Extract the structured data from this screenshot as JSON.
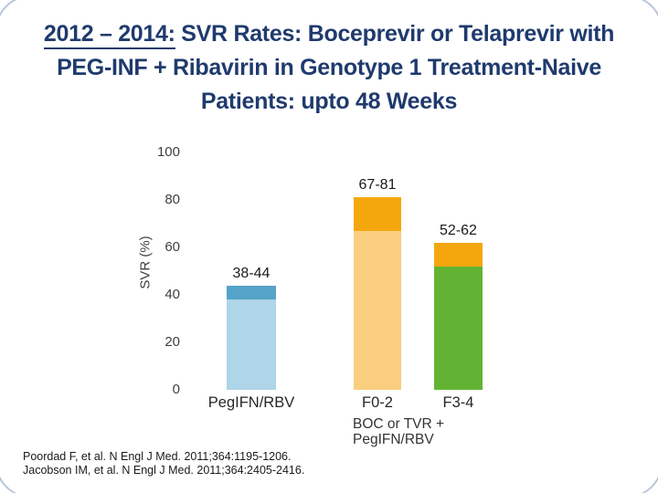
{
  "slide": {
    "title": {
      "underlined": "2012 – 2014:",
      "line1_rest": " SVR Rates: Boceprevir or Telaprevir with",
      "line2": "PEG-INF + Ribavirin in Genotype 1 Treatment-Naive",
      "line3": "Patients: upto 48 Weeks"
    },
    "references": [
      "Poordad F, et al. N Engl J Med. 2011;364:1195-1206.",
      "Jacobson IM, et al. N Engl J Med. 2011;364:2405-2416."
    ]
  },
  "chart_data": {
    "type": "bar",
    "subtype": "range-band-bars",
    "title": "",
    "xlabel": "",
    "ylabel": "SVR (%)",
    "ylim": [
      0,
      100
    ],
    "yticks": [
      100,
      80,
      60,
      40,
      20,
      0
    ],
    "grid": false,
    "legend_position": "none",
    "categories": [
      "PegIFN/RBV",
      "F0-2",
      "F3-4"
    ],
    "bars": [
      {
        "category": "PegIFN/RBV",
        "label": "38-44",
        "low": 38,
        "high": 44,
        "body_color": "#aed5e8",
        "band_color": "#55a3c8"
      },
      {
        "category": "F0-2",
        "label": "67-81",
        "low": 67,
        "high": 81,
        "body_color": "#f9ce7f",
        "band_color": "#f4a70d"
      },
      {
        "category": "F3-4",
        "label": "52-62",
        "low": 52,
        "high": 62,
        "body_color": "#62b334",
        "band_color": "#f4a70d"
      }
    ],
    "group_label_line1": "BOC or TVR +",
    "group_label_line2": "PegIFN/RBV",
    "group_note": "group label applies to bars F0-2 and F3-4"
  },
  "colors": {
    "title_text": "#1f3a6d",
    "axis_text": "#3f3f3f",
    "label_text": "#1a1a1a",
    "frame_border": "#b7c6da"
  }
}
